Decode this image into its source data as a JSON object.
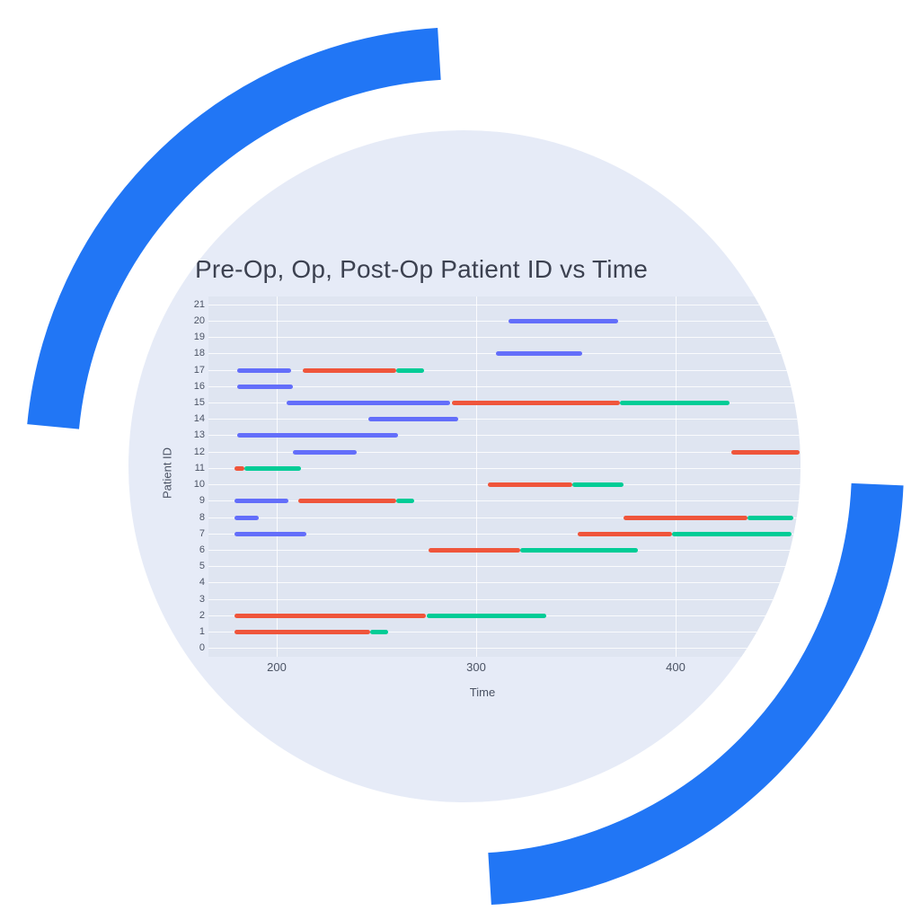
{
  "page": {
    "background": "#ffffff"
  },
  "decor": {
    "arc_color": "#2176f5",
    "circle_color": "#e6ebf7"
  },
  "chart_data": {
    "type": "gantt",
    "title": "Pre-Op, Op, Post-Op Patient ID vs Time",
    "xlabel": "Time",
    "ylabel": "Patient ID",
    "x_ticks": [
      200,
      300,
      400
    ],
    "xlim": [
      166,
      462
    ],
    "y_ticks": [
      0,
      1,
      2,
      3,
      4,
      5,
      6,
      7,
      8,
      9,
      10,
      11,
      12,
      13,
      14,
      15,
      16,
      17,
      18,
      19,
      20,
      21
    ],
    "ylim": [
      -0.5,
      21.5
    ],
    "grid": true,
    "legend": "none",
    "plot_bg": "#dfe5f1",
    "grid_color": "rgba(255,255,255,0.85)",
    "phases": [
      {
        "name": "Pre-Op",
        "color": "#636efa"
      },
      {
        "name": "Op",
        "color": "#ef553b"
      },
      {
        "name": "Post-Op",
        "color": "#00cc96"
      }
    ],
    "tasks": [
      {
        "patient_id": 20,
        "phase": "Pre-Op",
        "start": 316,
        "end": 371
      },
      {
        "patient_id": 18,
        "phase": "Pre-Op",
        "start": 310,
        "end": 353
      },
      {
        "patient_id": 17,
        "phase": "Pre-Op",
        "start": 180,
        "end": 207
      },
      {
        "patient_id": 17,
        "phase": "Op",
        "start": 213,
        "end": 260
      },
      {
        "patient_id": 17,
        "phase": "Post-Op",
        "start": 260,
        "end": 274
      },
      {
        "patient_id": 16,
        "phase": "Pre-Op",
        "start": 180,
        "end": 208
      },
      {
        "patient_id": 15,
        "phase": "Pre-Op",
        "start": 205,
        "end": 287
      },
      {
        "patient_id": 15,
        "phase": "Op",
        "start": 288,
        "end": 372
      },
      {
        "patient_id": 15,
        "phase": "Post-Op",
        "start": 372,
        "end": 427
      },
      {
        "patient_id": 14,
        "phase": "Pre-Op",
        "start": 246,
        "end": 291
      },
      {
        "patient_id": 13,
        "phase": "Pre-Op",
        "start": 180,
        "end": 261
      },
      {
        "patient_id": 12,
        "phase": "Pre-Op",
        "start": 208,
        "end": 240
      },
      {
        "patient_id": 12,
        "phase": "Op",
        "start": 428,
        "end": 462
      },
      {
        "patient_id": 11,
        "phase": "Op",
        "start": 179,
        "end": 184
      },
      {
        "patient_id": 11,
        "phase": "Post-Op",
        "start": 184,
        "end": 212
      },
      {
        "patient_id": 10,
        "phase": "Op",
        "start": 306,
        "end": 348
      },
      {
        "patient_id": 10,
        "phase": "Post-Op",
        "start": 348,
        "end": 374
      },
      {
        "patient_id": 9,
        "phase": "Pre-Op",
        "start": 179,
        "end": 206
      },
      {
        "patient_id": 9,
        "phase": "Op",
        "start": 211,
        "end": 260
      },
      {
        "patient_id": 9,
        "phase": "Post-Op",
        "start": 260,
        "end": 269
      },
      {
        "patient_id": 8,
        "phase": "Pre-Op",
        "start": 179,
        "end": 191
      },
      {
        "patient_id": 8,
        "phase": "Op",
        "start": 374,
        "end": 436
      },
      {
        "patient_id": 8,
        "phase": "Post-Op",
        "start": 436,
        "end": 459
      },
      {
        "patient_id": 7,
        "phase": "Pre-Op",
        "start": 179,
        "end": 215
      },
      {
        "patient_id": 7,
        "phase": "Op",
        "start": 351,
        "end": 398
      },
      {
        "patient_id": 7,
        "phase": "Post-Op",
        "start": 398,
        "end": 458
      },
      {
        "patient_id": 6,
        "phase": "Op",
        "start": 276,
        "end": 322
      },
      {
        "patient_id": 6,
        "phase": "Post-Op",
        "start": 322,
        "end": 381
      },
      {
        "patient_id": 2,
        "phase": "Op",
        "start": 179,
        "end": 275
      },
      {
        "patient_id": 2,
        "phase": "Post-Op",
        "start": 275,
        "end": 335
      },
      {
        "patient_id": 1,
        "phase": "Op",
        "start": 179,
        "end": 247
      },
      {
        "patient_id": 1,
        "phase": "Post-Op",
        "start": 247,
        "end": 256
      }
    ]
  }
}
